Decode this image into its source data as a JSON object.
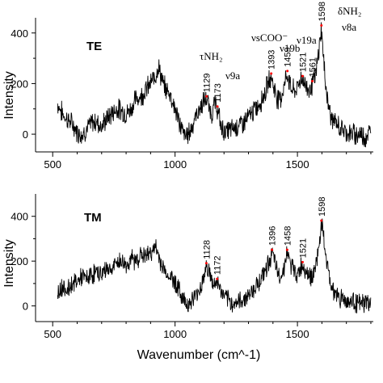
{
  "chart_data": [
    {
      "type": "line",
      "panel": "TE",
      "ylabel": "Intensity",
      "xlabel": "",
      "xlim": [
        430,
        1810
      ],
      "ylim": [
        -70,
        460
      ],
      "xticks": [
        "500",
        "1000",
        "1500"
      ],
      "yticks": [
        "0",
        "200",
        "400"
      ],
      "series": [
        {
          "x": [
            520,
            540,
            560,
            580,
            600,
            620,
            640,
            660,
            680,
            700,
            720,
            740,
            760,
            780,
            800,
            820,
            840,
            860,
            880,
            900,
            920,
            930,
            940,
            950,
            960,
            980,
            1000,
            1020,
            1040,
            1060,
            1080,
            1100,
            1120,
            1129,
            1140,
            1150,
            1160,
            1173,
            1190,
            1210,
            1230,
            1250,
            1270,
            1290,
            1310,
            1330,
            1350,
            1365,
            1380,
            1393,
            1405,
            1420,
            1435,
            1450,
            1459,
            1470,
            1485,
            1500,
            1510,
            1521,
            1535,
            1550,
            1561,
            1575,
            1585,
            1598,
            1610,
            1625,
            1640,
            1660,
            1680,
            1700,
            1720,
            1740,
            1760,
            1780,
            1800
          ],
          "values": [
            120,
            80,
            60,
            40,
            10,
            0,
            20,
            45,
            50,
            30,
            60,
            80,
            100,
            95,
            80,
            100,
            140,
            150,
            175,
            200,
            230,
            270,
            240,
            200,
            180,
            160,
            100,
            40,
            -10,
            10,
            60,
            100,
            130,
            140,
            100,
            80,
            120,
            100,
            20,
            10,
            20,
            30,
            40,
            55,
            80,
            100,
            130,
            160,
            200,
            230,
            180,
            140,
            150,
            210,
            240,
            190,
            170,
            180,
            215,
            220,
            190,
            175,
            200,
            230,
            310,
            420,
            250,
            120,
            60,
            40,
            20,
            10,
            0,
            0,
            0,
            -10,
            10
          ]
        }
      ],
      "peak_labels": [
        "1129",
        "1173",
        "1393",
        "1459",
        "1521",
        "1561",
        "1598"
      ],
      "mode_labels": [
        "τNH₂",
        "ν9a",
        "νsCOO⁻",
        "ν19b",
        "ν19a",
        "δNH₂",
        "ν8a"
      ]
    },
    {
      "type": "line",
      "panel": "TM",
      "ylabel": "Intensity",
      "xlabel": "Wavenumber (cm^-1)",
      "xlim": [
        430,
        1810
      ],
      "ylim": [
        -70,
        500
      ],
      "xticks": [
        "500",
        "1000",
        "1500"
      ],
      "yticks": [
        "0",
        "200",
        "400"
      ],
      "series": [
        {
          "x": [
            520,
            540,
            560,
            580,
            600,
            620,
            640,
            660,
            680,
            700,
            720,
            740,
            760,
            780,
            800,
            820,
            840,
            860,
            880,
            900,
            920,
            940,
            960,
            980,
            1000,
            1020,
            1040,
            1060,
            1080,
            1100,
            1115,
            1128,
            1140,
            1150,
            1160,
            1172,
            1190,
            1210,
            1230,
            1250,
            1270,
            1290,
            1310,
            1330,
            1350,
            1370,
            1385,
            1396,
            1410,
            1425,
            1440,
            1458,
            1470,
            1485,
            1500,
            1521,
            1540,
            1555,
            1570,
            1585,
            1598,
            1612,
            1630,
            1650,
            1670,
            1690,
            1710,
            1730,
            1750,
            1770,
            1800
          ],
          "values": [
            60,
            90,
            70,
            100,
            110,
            130,
            120,
            140,
            150,
            140,
            170,
            160,
            190,
            200,
            180,
            210,
            200,
            230,
            220,
            240,
            260,
            200,
            150,
            130,
            110,
            60,
            20,
            10,
            40,
            70,
            120,
            180,
            150,
            110,
            90,
            110,
            60,
            30,
            10,
            15,
            20,
            40,
            60,
            90,
            120,
            160,
            200,
            240,
            180,
            130,
            150,
            240,
            190,
            160,
            140,
            185,
            150,
            130,
            150,
            240,
            370,
            260,
            120,
            60,
            40,
            30,
            20,
            20,
            10,
            10,
            20
          ]
        }
      ],
      "peak_labels": [
        "1128",
        "1172",
        "1396",
        "1458",
        "1521",
        "1598"
      ]
    }
  ],
  "colors": {
    "line": "#000000",
    "axis": "#000000",
    "marker": "#ff0000"
  }
}
